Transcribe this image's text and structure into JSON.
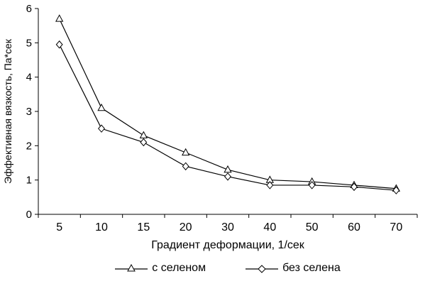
{
  "chart_data": {
    "type": "line",
    "categories": [
      "5",
      "10",
      "15",
      "20",
      "30",
      "40",
      "50",
      "60",
      "70"
    ],
    "series": [
      {
        "name": "с селеном",
        "marker": "triangle",
        "values": [
          5.7,
          3.1,
          2.3,
          1.8,
          1.3,
          1.0,
          0.95,
          0.85,
          0.75
        ]
      },
      {
        "name": "без селена",
        "marker": "diamond",
        "values": [
          4.95,
          2.5,
          2.1,
          1.4,
          1.1,
          0.85,
          0.85,
          0.8,
          0.7
        ]
      }
    ],
    "title": "",
    "xlabel": "Градиент деформации, 1/сек",
    "ylabel": "Эффективная вязкость, Па*сек",
    "ylim": [
      0,
      6
    ],
    "yticks": [
      0,
      1,
      2,
      3,
      4,
      5,
      6
    ],
    "grid": "off",
    "legend_position": "bottom",
    "line_color": "#000000",
    "marker_fill": "#ffffff",
    "background": "#ffffff"
  }
}
